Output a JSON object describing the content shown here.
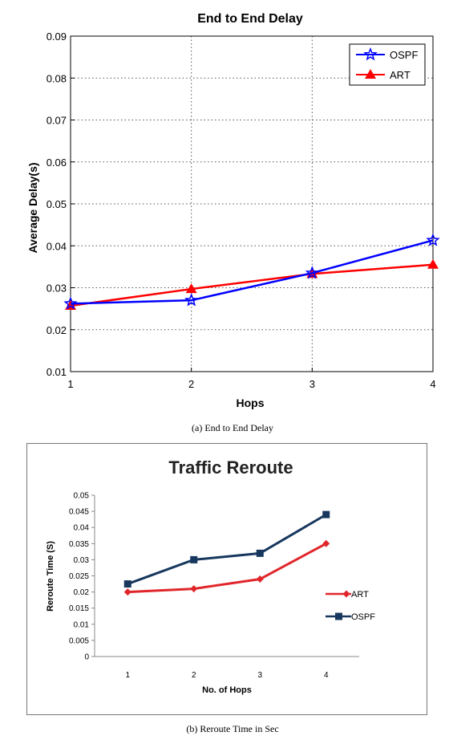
{
  "chart_data": [
    {
      "type": "line",
      "title": "End to End Delay",
      "xlabel": "Hops",
      "ylabel": "Average Delay(s)",
      "x": [
        1,
        2,
        3,
        4
      ],
      "xlim": [
        1,
        4
      ],
      "ylim": [
        0.01,
        0.09
      ],
      "x_ticks": [
        "1",
        "2",
        "3",
        "4"
      ],
      "y_ticks": [
        "0.01",
        "0.02",
        "0.03",
        "0.04",
        "0.05",
        "0.06",
        "0.07",
        "0.08",
        "0.09"
      ],
      "grid": true,
      "legend_position": "top-right",
      "series": [
        {
          "name": "OSPF",
          "values": [
            0.0262,
            0.027,
            0.0335,
            0.0413
          ],
          "color": "#0000ff",
          "marker": "star"
        },
        {
          "name": "ART",
          "values": [
            0.0257,
            0.0297,
            0.0333,
            0.0355
          ],
          "color": "#ff0000",
          "marker": "triangle"
        }
      ],
      "caption": "(a) End to End Delay"
    },
    {
      "type": "line",
      "title": "Traffic Reroute",
      "xlabel": "No. of Hops",
      "ylabel": "Reroute Time (S)",
      "categories": [
        "1",
        "2",
        "3",
        "4"
      ],
      "ylim": [
        0,
        0.05
      ],
      "y_ticks": [
        "0",
        "0.005",
        "0.01",
        "0.015",
        "0.02",
        "0.025",
        "0.03",
        "0.035",
        "0.04",
        "0.045",
        "0.05"
      ],
      "grid": false,
      "legend_position": "right",
      "series": [
        {
          "name": "ART",
          "values": [
            0.02,
            0.021,
            0.024,
            0.035
          ],
          "color": "#e0262b",
          "marker": "diamond"
        },
        {
          "name": "OSPF",
          "values": [
            0.0225,
            0.03,
            0.032,
            0.044
          ],
          "color": "#17375e",
          "marker": "square"
        }
      ],
      "caption": "(b) Reroute Time in Sec"
    }
  ]
}
